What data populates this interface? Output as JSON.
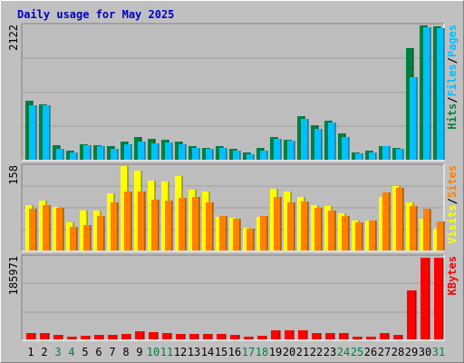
{
  "title": "Daily usage for May 2025",
  "colors": {
    "background": "#c0c0c0",
    "panel": "#bdbdbd",
    "grid": "#9e9e9e",
    "hits": "#008040",
    "files": "#00c0ff",
    "pages": "#00c0ff",
    "visits": "#ffff00",
    "sites": "#ff8000",
    "kbytes": "#ff0000",
    "title": "#0000c0",
    "weekend_day": "#008040"
  },
  "chart_data": [
    {
      "type": "bar",
      "panel": "hits-files",
      "categories": [
        "1",
        "2",
        "3",
        "4",
        "5",
        "6",
        "7",
        "8",
        "9",
        "10",
        "11",
        "12",
        "13",
        "14",
        "15",
        "16",
        "17",
        "18",
        "19",
        "20",
        "21",
        "22",
        "23",
        "24",
        "25",
        "26",
        "27",
        "28",
        "29",
        "30",
        "31"
      ],
      "max_label": "2122",
      "ylim": [
        0,
        2122
      ],
      "axis_label": [
        {
          "text": "Pages",
          "color": "#00c0ff"
        },
        {
          "text": "/",
          "color": "#000000"
        },
        {
          "text": "Files",
          "color": "#00c0ff"
        },
        {
          "text": "/",
          "color": "#000000"
        },
        {
          "text": "Hits",
          "color": "#008040"
        }
      ],
      "series": [
        {
          "name": "Hits",
          "color": "#008040",
          "values": [
            930,
            880,
            230,
            150,
            250,
            230,
            220,
            290,
            360,
            330,
            310,
            280,
            210,
            190,
            210,
            170,
            120,
            180,
            360,
            320,
            690,
            540,
            610,
            410,
            120,
            140,
            220,
            190,
            1770,
            2122,
            2110
          ]
        },
        {
          "name": "Files",
          "color": "#00c0ff",
          "values": [
            860,
            860,
            170,
            120,
            230,
            210,
            170,
            240,
            280,
            260,
            270,
            250,
            190,
            170,
            190,
            150,
            90,
            150,
            330,
            300,
            650,
            490,
            590,
            360,
            100,
            110,
            210,
            170,
            1300,
            2090,
            2080
          ]
        }
      ]
    },
    {
      "type": "bar",
      "panel": "visits-sites",
      "categories": [
        "1",
        "2",
        "3",
        "4",
        "5",
        "6",
        "7",
        "8",
        "9",
        "10",
        "11",
        "12",
        "13",
        "14",
        "15",
        "16",
        "17",
        "18",
        "19",
        "20",
        "21",
        "22",
        "23",
        "24",
        "25",
        "26",
        "27",
        "28",
        "29",
        "30",
        "31"
      ],
      "max_label": "158",
      "ylim": [
        0,
        158
      ],
      "axis_label": [
        {
          "text": "Sites",
          "color": "#ff8000"
        },
        {
          "text": "/",
          "color": "#000000"
        },
        {
          "text": "Visits",
          "color": "#ffff00"
        }
      ],
      "series": [
        {
          "name": "Visits",
          "color": "#ffff00",
          "values": [
            85,
            93,
            82,
            52,
            74,
            75,
            107,
            158,
            150,
            130,
            129,
            140,
            114,
            110,
            63,
            62,
            42,
            63,
            115,
            110,
            100,
            85,
            83,
            70,
            56,
            56,
            100,
            120,
            90,
            60,
            40
          ]
        },
        {
          "name": "Sites",
          "color": "#ff8000",
          "values": [
            78,
            85,
            80,
            45,
            47,
            65,
            90,
            111,
            111,
            95,
            93,
            98,
            100,
            90,
            65,
            60,
            40,
            65,
            101,
            90,
            92,
            80,
            75,
            64,
            52,
            56,
            108,
            117,
            84,
            78,
            54
          ]
        }
      ]
    },
    {
      "type": "bar",
      "panel": "kbytes",
      "categories": [
        "1",
        "2",
        "3",
        "4",
        "5",
        "6",
        "7",
        "8",
        "9",
        "10",
        "11",
        "12",
        "13",
        "14",
        "15",
        "16",
        "17",
        "18",
        "19",
        "20",
        "21",
        "22",
        "23",
        "24",
        "25",
        "26",
        "27",
        "28",
        "29",
        "30",
        "31"
      ],
      "max_label": "185971",
      "ylim": [
        0,
        185971
      ],
      "axis_label": [
        {
          "text": "KBytes",
          "color": "#ff0000"
        }
      ],
      "series": [
        {
          "name": "KBytes",
          "color": "#ff0000",
          "values": [
            14000,
            14000,
            10000,
            7000,
            9000,
            10000,
            11000,
            13000,
            19000,
            17000,
            15000,
            13000,
            12000,
            12000,
            12000,
            10000,
            6000,
            9000,
            21000,
            21000,
            21000,
            14000,
            14000,
            14000,
            7000,
            7000,
            14000,
            11000,
            110000,
            184000,
            183000
          ]
        }
      ]
    }
  ],
  "x_axis": {
    "days": [
      {
        "label": "1",
        "weekend": false
      },
      {
        "label": "2",
        "weekend": false
      },
      {
        "label": "3",
        "weekend": true
      },
      {
        "label": "4",
        "weekend": true
      },
      {
        "label": "5",
        "weekend": false
      },
      {
        "label": "6",
        "weekend": false
      },
      {
        "label": "7",
        "weekend": false
      },
      {
        "label": "8",
        "weekend": false
      },
      {
        "label": "9",
        "weekend": false
      },
      {
        "label": "10",
        "weekend": true
      },
      {
        "label": "11",
        "weekend": true
      },
      {
        "label": "12",
        "weekend": false
      },
      {
        "label": "13",
        "weekend": false
      },
      {
        "label": "14",
        "weekend": false
      },
      {
        "label": "15",
        "weekend": false
      },
      {
        "label": "16",
        "weekend": false
      },
      {
        "label": "17",
        "weekend": true
      },
      {
        "label": "18",
        "weekend": true
      },
      {
        "label": "19",
        "weekend": false
      },
      {
        "label": "20",
        "weekend": false
      },
      {
        "label": "21",
        "weekend": false
      },
      {
        "label": "22",
        "weekend": false
      },
      {
        "label": "23",
        "weekend": false
      },
      {
        "label": "24",
        "weekend": true
      },
      {
        "label": "25",
        "weekend": true
      },
      {
        "label": "26",
        "weekend": false
      },
      {
        "label": "27",
        "weekend": false
      },
      {
        "label": "28",
        "weekend": false
      },
      {
        "label": "29",
        "weekend": false
      },
      {
        "label": "30",
        "weekend": false
      },
      {
        "label": "31",
        "weekend": true
      }
    ]
  }
}
